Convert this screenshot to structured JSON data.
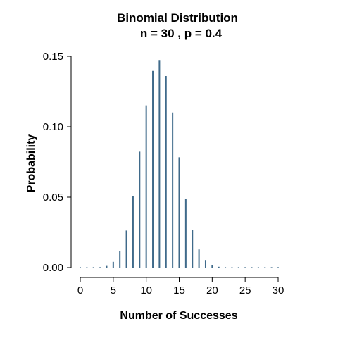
{
  "chart_data": {
    "type": "bar",
    "title": "Binomial Distribution",
    "subtitle": "n = 30 , p = 0.4",
    "xlabel": "Number of Successes",
    "ylabel": "Probability",
    "x": [
      0,
      1,
      2,
      3,
      4,
      5,
      6,
      7,
      8,
      9,
      10,
      11,
      12,
      13,
      14,
      15,
      16,
      17,
      18,
      19,
      20,
      21,
      22,
      23,
      24,
      25,
      26,
      27,
      28,
      29,
      30
    ],
    "values": [
      2e-07,
      4e-06,
      4e-05,
      0.0003,
      0.0012,
      0.0041,
      0.0115,
      0.0263,
      0.0505,
      0.0823,
      0.1152,
      0.1396,
      0.1474,
      0.136,
      0.1101,
      0.0783,
      0.0489,
      0.0269,
      0.0129,
      0.0054,
      0.002,
      0.0006,
      0.0002,
      4e-05,
      1e-05,
      1e-06,
      2e-07,
      2e-08,
      1e-09,
      1e-10,
      0.0
    ],
    "xlim": [
      0,
      30
    ],
    "ylim": [
      0,
      0.15
    ],
    "xticks": [
      0,
      5,
      10,
      15,
      20,
      25,
      30
    ],
    "xtick_labels": [
      "0",
      "5",
      "10",
      "15",
      "20",
      "25",
      "30"
    ],
    "yticks": [
      0,
      0.05,
      0.1,
      0.15
    ],
    "ytick_labels": [
      "0.00",
      "0.05",
      "0.10",
      "0.15"
    ],
    "bar_color": "#3f6a8a",
    "grid": false
  }
}
